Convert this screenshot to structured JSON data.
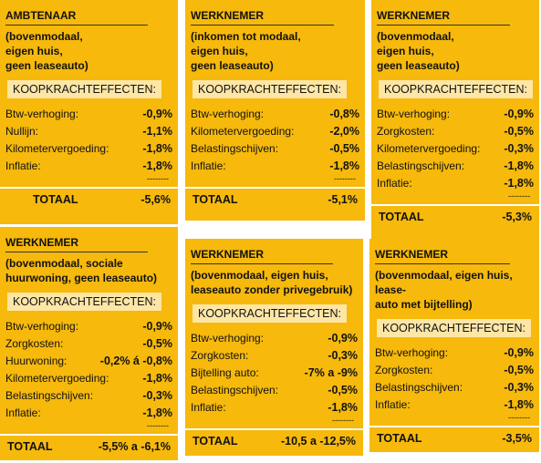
{
  "panels": [
    {
      "title": "AMBTENAAR",
      "subtitle": [
        "(bovenmodaal,",
        "eigen huis,",
        "geen leaseauto)"
      ],
      "section": "KOOPKRACHTEFFECTEN:",
      "items": [
        {
          "label": "Btw-verhoging:",
          "value": "-0,9%"
        },
        {
          "label": "Nullijn:",
          "value": "-1,1%"
        },
        {
          "label": "Kilometervergoeding:",
          "value": "-1,8%"
        },
        {
          "label": "Inflatie:",
          "value": "-1,8%"
        }
      ],
      "separator": "--------",
      "total_label": "TOTAAL",
      "total_value": "-5,6%"
    },
    {
      "title": "WERKNEMER",
      "subtitle": [
        "(inkomen tot modaal,",
        "eigen huis,",
        "geen leaseauto)"
      ],
      "section": "KOOPKRACHTEFFECTEN:",
      "items": [
        {
          "label": "Btw-verhoging:",
          "value": "-0,8%"
        },
        {
          "label": "Kilometervergoeding:",
          "value": "-2,0%"
        },
        {
          "label": "Belastingschijven:",
          "value": "-0,5%"
        },
        {
          "label": "Inflatie:",
          "value": "-1,8%"
        }
      ],
      "separator": "--------",
      "total_label": "TOTAAL",
      "total_value": "-5,1%"
    },
    {
      "title": "WERKNEMER",
      "subtitle": [
        "(bovenmodaal,",
        "eigen huis,",
        "geen leaseauto)"
      ],
      "section": "KOOPKRACHTEFFECTEN:",
      "items": [
        {
          "label": "Btw-verhoging:",
          "value": "-0,9%"
        },
        {
          "label": "Zorgkosten:",
          "value": "-0,5%"
        },
        {
          "label": "Kilometervergoeding:",
          "value": "-0,3%"
        },
        {
          "label": "Belastingschijven:",
          "value": "-1,8%"
        },
        {
          "label": "Inflatie:",
          "value": "-1,8%"
        }
      ],
      "separator": "--------",
      "total_label": "TOTAAL",
      "total_value": "-5,3%"
    },
    {
      "title": "WERKNEMER",
      "subtitle": [
        "(bovenmodaal, sociale",
        "huurwoning, geen leaseauto)"
      ],
      "section": "KOOPKRACHTEFFECTEN:",
      "items": [
        {
          "label": "Btw-verhoging:",
          "value": "-0,9%"
        },
        {
          "label": "Zorgkosten:",
          "value": "-0,5%"
        },
        {
          "label": "Huurwoning:",
          "value": "-0,2% á -0,8%"
        },
        {
          "label": "Kilometervergoeding:",
          "value": "-1,8%"
        },
        {
          "label": "Belastingschijven:",
          "value": "-0,3%"
        },
        {
          "label": "Inflatie:",
          "value": "-1,8%"
        }
      ],
      "separator": "--------",
      "total_label": "TOTAAL",
      "total_value": "-5,5% a -6,1%"
    },
    {
      "title": "WERKNEMER",
      "subtitle": [
        "(bovenmodaal, eigen huis,",
        "leaseauto zonder privegebruik)"
      ],
      "section": "KOOPKRACHTEFFECTEN:",
      "items": [
        {
          "label": "Btw-verhoging:",
          "value": "-0,9%"
        },
        {
          "label": "Zorgkosten:",
          "value": "-0,3%"
        },
        {
          "label": "Bijtelling auto:",
          "value": "-7% a -9%"
        },
        {
          "label": "Belastingschijven:",
          "value": "-0,5%"
        },
        {
          "label": "Inflatie:",
          "value": "-1,8%"
        }
      ],
      "separator": "--------",
      "total_label": "TOTAAL",
      "total_value": "-10,5 a -12,5%"
    },
    {
      "title": "WERKNEMER",
      "subtitle": [
        "(bovenmodaal, eigen huis, lease-",
        "auto met bijtelling)"
      ],
      "section": "KOOPKRACHTEFFECTEN:",
      "items": [
        {
          "label": "Btw-verhoging:",
          "value": "-0,9%"
        },
        {
          "label": "Zorgkosten:",
          "value": "-0,5%"
        },
        {
          "label": "Belastingschijven:",
          "value": "-0,3%"
        },
        {
          "label": "Inflatie:",
          "value": "-1,8%"
        }
      ],
      "separator": "--------",
      "total_label": "TOTAAL",
      "total_value": "-3,5%"
    }
  ]
}
